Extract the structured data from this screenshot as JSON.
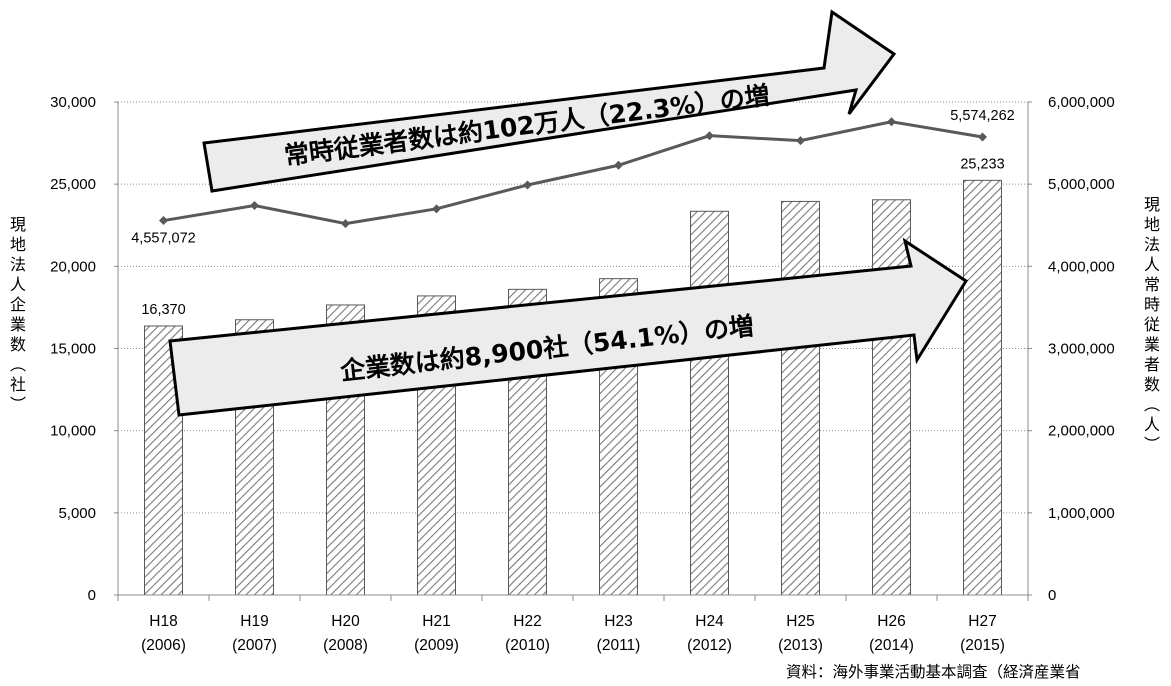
{
  "chart_data": {
    "type": "bar+line",
    "categories": [
      {
        "line1": "H18",
        "line2": "(2006)"
      },
      {
        "line1": "H19",
        "line2": "(2007)"
      },
      {
        "line1": "H20",
        "line2": "(2008)"
      },
      {
        "line1": "H21",
        "line2": "(2009)"
      },
      {
        "line1": "H22",
        "line2": "(2010)"
      },
      {
        "line1": "H23",
        "line2": "(2011)"
      },
      {
        "line1": "H24",
        "line2": "(2012)"
      },
      {
        "line1": "H25",
        "line2": "(2013)"
      },
      {
        "line1": "H26",
        "line2": "(2014)"
      },
      {
        "line1": "H27",
        "line2": "(2015)"
      }
    ],
    "bars": {
      "axis": "left",
      "values": [
        16370,
        16750,
        17650,
        18200,
        18600,
        19250,
        23350,
        23950,
        24050,
        25233
      ],
      "labels": {
        "0": "16,370",
        "9": "25,233"
      }
    },
    "line": {
      "axis": "right",
      "values": [
        4557072,
        4740000,
        4520000,
        4700000,
        4990000,
        5230000,
        5590000,
        5530000,
        5760000,
        5574262
      ],
      "labels": {
        "0": "4,557,072",
        "9": "5,574,262"
      }
    },
    "left_axis": {
      "label": "現地法人企業数（社）",
      "min": 0,
      "max": 30000,
      "ticks": [
        0,
        5000,
        10000,
        15000,
        20000,
        25000,
        30000
      ],
      "tick_labels": [
        "0",
        "5,000",
        "10,000",
        "15,000",
        "20,000",
        "25,000",
        "30,000"
      ]
    },
    "right_axis": {
      "label": "現地法人常時従業者数（人）",
      "min": 0,
      "max": 6000000,
      "ticks": [
        0,
        1000000,
        2000000,
        3000000,
        4000000,
        5000000,
        6000000
      ],
      "tick_labels": [
        "0",
        "1,000,000",
        "2,000,000",
        "3,000,000",
        "4,000,000",
        "5,000,000",
        "6,000,000"
      ]
    },
    "annotations": [
      "常時従業者数は約102万人（22.3%）の増",
      "企業数は約8,900社（54.1%）の増"
    ],
    "grid": "horizontal dotted",
    "colors": {
      "line": "#595959",
      "bar_stroke": "#595959",
      "arrow_fill": "#ececec"
    }
  },
  "source_note": "資料：海外事業活動基本調査（経済産業省"
}
